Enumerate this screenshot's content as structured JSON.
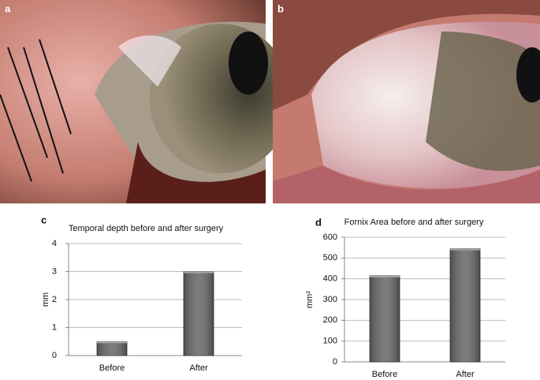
{
  "panel_labels": [
    "a",
    "b",
    "c",
    "d"
  ],
  "chart_data": [
    {
      "type": "bar",
      "title": "Temporal depth before and after surgery",
      "y_label": "mm",
      "categories": [
        "Before",
        "After"
      ],
      "values": [
        0.5,
        3.0
      ],
      "color": "#6a6a6a",
      "ylim": [
        0,
        4
      ],
      "yticks": [
        0,
        1,
        2,
        3,
        4
      ],
      "grid": true
    },
    {
      "type": "bar",
      "title": "Fornix Area before and after surgery",
      "y_label": "mm²",
      "categories": [
        "Before",
        "After"
      ],
      "values": [
        415,
        545
      ],
      "color": "#6a6a6a",
      "ylim": [
        0,
        600
      ],
      "yticks": [
        0,
        100,
        200,
        300,
        400,
        500,
        600
      ],
      "grid": true
    }
  ]
}
